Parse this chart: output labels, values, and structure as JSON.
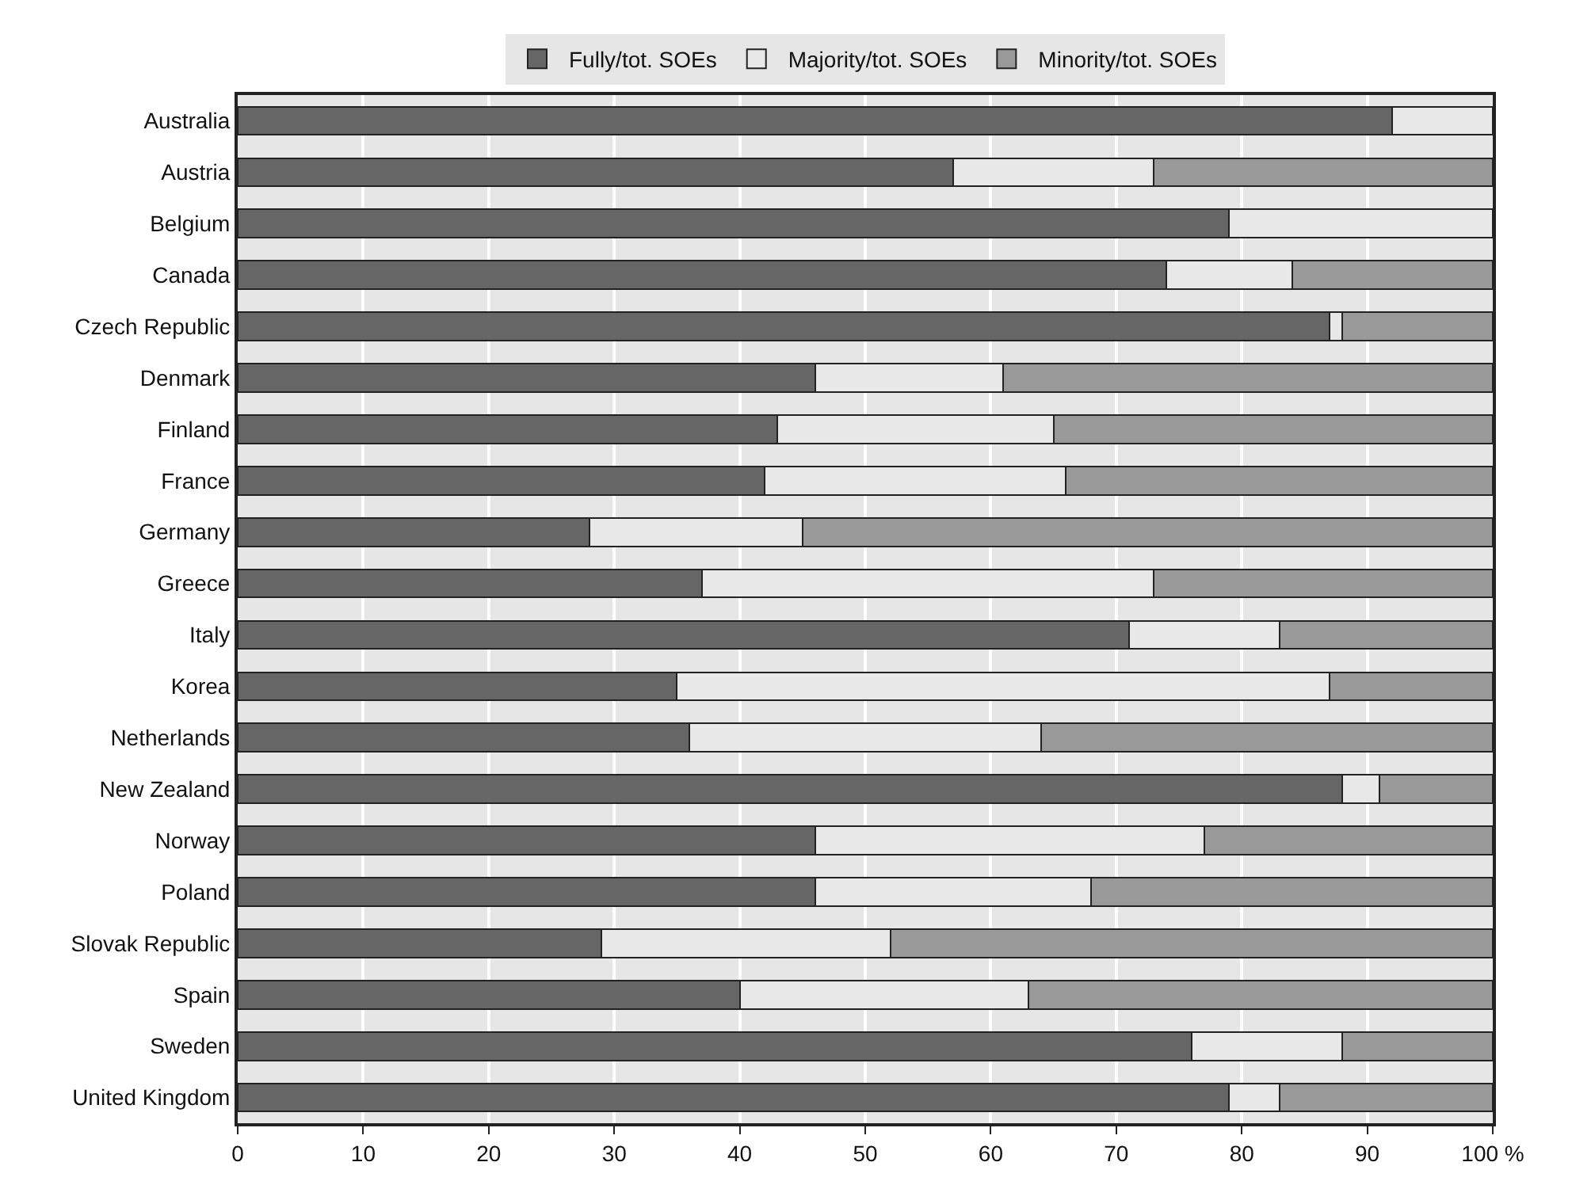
{
  "chart_data": {
    "type": "bar",
    "orientation": "horizontal",
    "stacked": true,
    "categories": [
      "Australia",
      "Austria",
      "Belgium",
      "Canada",
      "Czech Republic",
      "Denmark",
      "Finland",
      "France",
      "Germany",
      "Greece",
      "Italy",
      "Korea",
      "Netherlands",
      "New Zealand",
      "Norway",
      "Poland",
      "Slovak Republic",
      "Spain",
      "Sweden",
      "United Kingdom"
    ],
    "series": [
      {
        "name": "Fully/tot. SOEs",
        "color": "#666666",
        "values": [
          92,
          57,
          79,
          74,
          87,
          46,
          43,
          42,
          28,
          37,
          71,
          35,
          36,
          88,
          46,
          46,
          29,
          40,
          76,
          79
        ]
      },
      {
        "name": "Majority/tot. SOEs",
        "color": "#e8e8e8",
        "values": [
          8,
          16,
          21,
          10,
          1,
          15,
          22,
          24,
          17,
          36,
          12,
          52,
          28,
          3,
          31,
          22,
          23,
          23,
          12,
          4
        ]
      },
      {
        "name": "Minority/tot. SOEs",
        "color": "#999999",
        "values": [
          null,
          27,
          null,
          16,
          12,
          39,
          35,
          34,
          55,
          27,
          17,
          13,
          36,
          9,
          23,
          32,
          48,
          37,
          12,
          17
        ]
      }
    ],
    "xlim": [
      0,
      100
    ],
    "xticks": [
      0,
      10,
      20,
      30,
      40,
      50,
      60,
      70,
      80,
      90,
      {
        "value": 100,
        "label": "100 %"
      }
    ],
    "grid": "x",
    "legend": "top"
  }
}
